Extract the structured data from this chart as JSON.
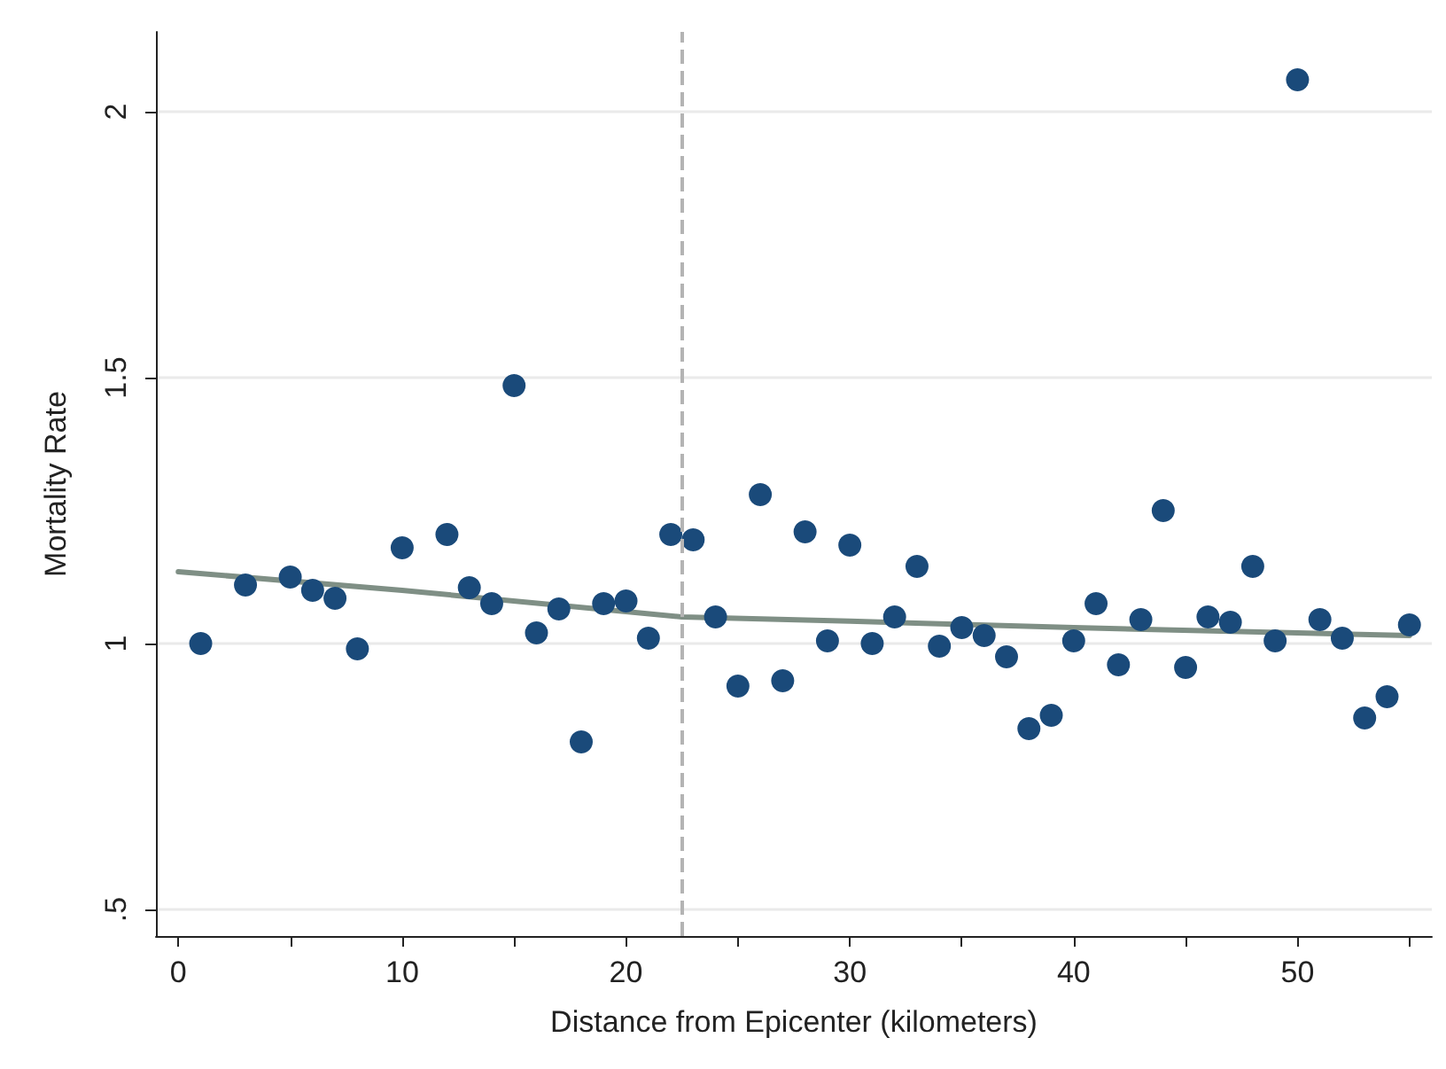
{
  "chart_data": {
    "type": "scatter",
    "xlabel": "Distance from Epicenter (kilometers)",
    "ylabel": "Mortality Rate",
    "xlim": [
      -1,
      56
    ],
    "xticks": [
      0,
      {
        "value": 5,
        "label": null
      },
      10,
      {
        "value": 15,
        "label": null
      },
      20,
      {
        "value": 25,
        "label": null
      },
      30,
      {
        "value": 35,
        "label": null
      },
      40,
      {
        "value": 45,
        "label": null
      },
      50,
      {
        "value": 55,
        "label": null
      }
    ],
    "ylim": [
      0.45,
      2.15
    ],
    "yticks": [
      {
        "value": 0.5,
        "label": ".5"
      },
      1,
      1.5,
      2
    ],
    "grid": "y",
    "marker": "circle",
    "ref_lines": [
      {
        "axis": "x",
        "value": 22.5,
        "color": "#b4b4b4",
        "line_style": "dashed"
      }
    ],
    "series": [
      {
        "color": "#1a4a7a",
        "x": [
          1,
          3,
          5,
          6,
          7,
          8,
          10,
          12,
          13,
          14,
          15,
          16,
          17,
          18,
          19,
          20,
          21,
          22,
          23,
          24,
          25,
          26,
          27,
          28,
          29,
          30,
          31,
          32,
          33,
          34,
          35,
          36,
          37,
          38,
          39,
          40,
          41,
          42,
          43,
          44,
          45,
          46,
          47,
          48,
          49,
          50,
          51,
          52,
          53,
          54,
          55
        ],
        "values": [
          1.0,
          1.11,
          1.125,
          1.1,
          1.085,
          0.99,
          1.18,
          1.205,
          1.105,
          1.075,
          1.485,
          1.02,
          1.065,
          0.815,
          1.075,
          1.08,
          1.01,
          1.205,
          1.195,
          1.05,
          0.92,
          1.28,
          0.93,
          1.21,
          1.005,
          1.185,
          1.0,
          1.05,
          1.145,
          0.995,
          1.03,
          1.015,
          0.975,
          0.84,
          0.865,
          1.005,
          1.075,
          0.96,
          1.045,
          1.25,
          0.955,
          1.05,
          1.04,
          1.145,
          1.005,
          2.06,
          1.045,
          1.01,
          0.86,
          0.9,
          1.035
        ]
      },
      {
        "type": "line",
        "color": "#7f8f85",
        "marker": "none",
        "line_style": "solid",
        "x": [
          0,
          10,
          20,
          22.5,
          30,
          40,
          50,
          55
        ],
        "values": [
          1.135,
          1.1,
          1.06,
          1.05,
          1.042,
          1.03,
          1.02,
          1.015
        ]
      }
    ]
  }
}
